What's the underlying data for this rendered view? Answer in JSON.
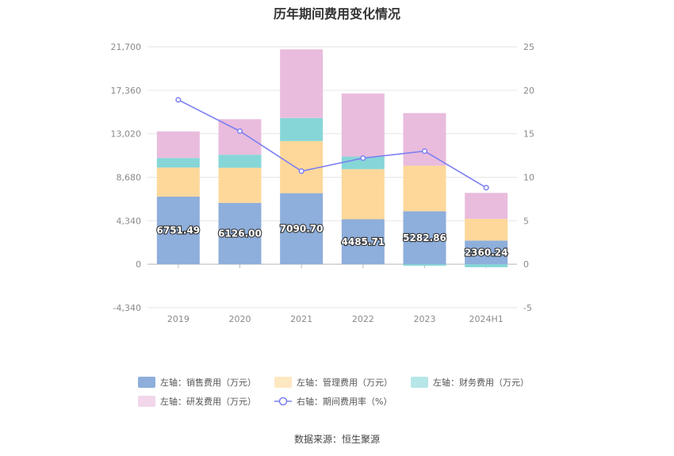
{
  "title": "历年期间费用变化情况",
  "source": "数据来源：恒生聚源",
  "chart_data": {
    "type": "bar",
    "stacked": true,
    "categories": [
      "2019",
      "2020",
      "2021",
      "2022",
      "2023",
      "2024H1"
    ],
    "left_axis": {
      "min": -4340,
      "max": 21700,
      "ticks": [
        "-4,340",
        "0",
        "4,340",
        "8,680",
        "13,020",
        "17,360",
        "21,700"
      ]
    },
    "right_axis": {
      "min": -5,
      "max": 25,
      "ticks": [
        "-5",
        "0",
        "5",
        "10",
        "15",
        "20",
        "25"
      ]
    },
    "series": [
      {
        "name": "左轴：销售费用（万元）",
        "kind": "bar",
        "axis": "left",
        "color": "#8eaedb",
        "values": [
          6751.49,
          6126.0,
          7090.7,
          4485.71,
          5282.86,
          2360.24
        ]
      },
      {
        "name": "左轴：管理费用（万元）",
        "kind": "bar",
        "axis": "left",
        "color": "#fdd89a",
        "values": [
          2900,
          3500,
          5200,
          5000,
          4550,
          2170
        ]
      },
      {
        "name": "左轴：财务费用（万元）",
        "kind": "bar",
        "axis": "left",
        "color": "#86d6d8",
        "values": [
          950,
          1300,
          2300,
          1250,
          -150,
          -300
        ]
      },
      {
        "name": "左轴：研发费用（万元）",
        "kind": "bar",
        "axis": "left",
        "color": "#e9bcdd",
        "values": [
          2650,
          3550,
          6850,
          6300,
          5250,
          2590
        ]
      },
      {
        "name": "右轴：期间费用率（%）",
        "kind": "line",
        "axis": "right",
        "color": "#7b7ff0",
        "values": [
          18.9,
          15.3,
          10.7,
          12.2,
          13.0,
          8.8
        ]
      }
    ],
    "data_labels": [
      "6751.49",
      "6126.00",
      "7090.70",
      "4485.71",
      "5282.86",
      "2360.24"
    ],
    "grid": true,
    "legend_position": "bottom"
  }
}
